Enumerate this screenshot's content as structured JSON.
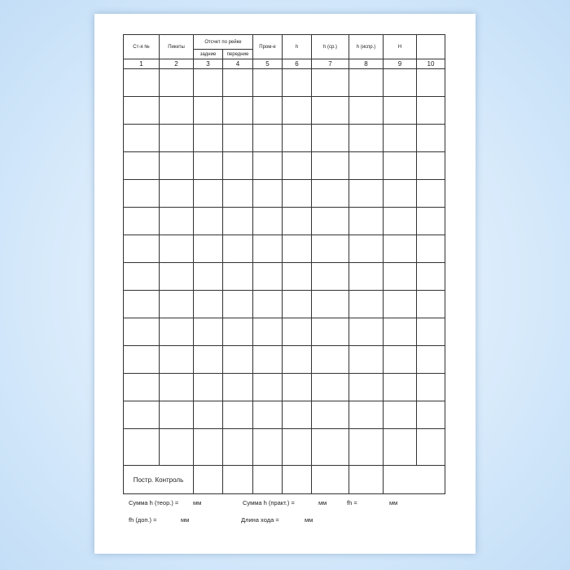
{
  "header": {
    "col1": "Ст-я №",
    "col2": "Пикеты",
    "group_3_4": "Отсчет по рейке",
    "col3": "задние",
    "col4": "передние",
    "col5": "Пром-е",
    "col6": "h",
    "col7": "h (ср.)",
    "col8": "h (испр.)",
    "col9": "H",
    "col10": ""
  },
  "column_numbers": [
    "1",
    "2",
    "3",
    "4",
    "5",
    "6",
    "7",
    "8",
    "9",
    "10"
  ],
  "data_row_count": 14,
  "control_row": {
    "label": "Постр. Контроль"
  },
  "footer": {
    "sum_theor": "Сумма h (теор.) =",
    "sum_theor_unit": "мм",
    "sum_pract": "Сумма h (практ.) =",
    "sum_pract_unit": "мм",
    "fh": "fh =",
    "fh_unit": "мм",
    "fh_allowed": "fh (доп.) =",
    "fh_allowed_unit": "мм",
    "length": "Длина хода =",
    "length_unit": "мм"
  }
}
